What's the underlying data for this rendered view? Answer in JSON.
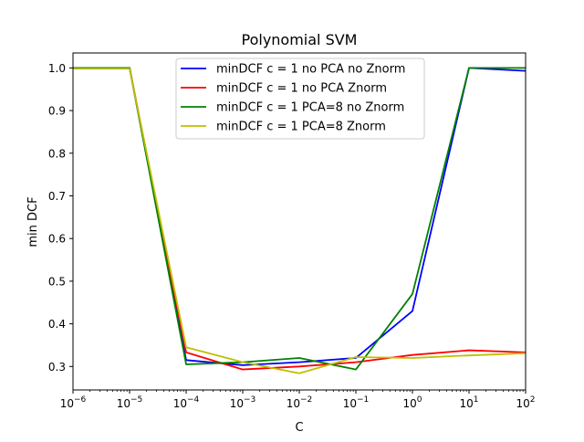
{
  "chart_data": {
    "type": "line",
    "title": "Polynomial SVM",
    "xlabel": "C",
    "ylabel": "min DCF",
    "x_scale": "log",
    "xlim": [
      1e-06,
      100
    ],
    "ylim": [
      0.245,
      1.035
    ],
    "x": [
      1e-06,
      1e-05,
      0.0001,
      0.001,
      0.01,
      0.1,
      1,
      10,
      100
    ],
    "x_ticks": [
      {
        "value": 1e-06,
        "base": "10",
        "exp": "−6"
      },
      {
        "value": 1e-05,
        "base": "10",
        "exp": "−5"
      },
      {
        "value": 0.0001,
        "base": "10",
        "exp": "−4"
      },
      {
        "value": 0.001,
        "base": "10",
        "exp": "−3"
      },
      {
        "value": 0.01,
        "base": "10",
        "exp": "−2"
      },
      {
        "value": 0.1,
        "base": "10",
        "exp": "−1"
      },
      {
        "value": 1,
        "base": "10",
        "exp": "0"
      },
      {
        "value": 10,
        "base": "10",
        "exp": "1"
      },
      {
        "value": 100,
        "base": "10",
        "exp": "2"
      }
    ],
    "y_ticks": [
      {
        "value": 0.3,
        "label": "0.3"
      },
      {
        "value": 0.4,
        "label": "0.4"
      },
      {
        "value": 0.5,
        "label": "0.5"
      },
      {
        "value": 0.6,
        "label": "0.6"
      },
      {
        "value": 0.7,
        "label": "0.7"
      },
      {
        "value": 0.8,
        "label": "0.8"
      },
      {
        "value": 0.9,
        "label": "0.9"
      },
      {
        "value": 1.0,
        "label": "1.0"
      }
    ],
    "grid": false,
    "legend_position": "top-center",
    "series": [
      {
        "name": "minDCF c = 1 no PCA no Znorm",
        "color": "#0000ff",
        "values": [
          1.0,
          1.0,
          0.315,
          0.303,
          0.31,
          0.32,
          0.43,
          1.0,
          0.993
        ]
      },
      {
        "name": "minDCF c = 1 no PCA Znorm",
        "color": "#ff0000",
        "values": [
          1.0,
          1.0,
          0.333,
          0.293,
          0.3,
          0.31,
          0.327,
          0.338,
          0.333
        ]
      },
      {
        "name": "minDCF c = 1 PCA=8 no Znorm",
        "color": "#008000",
        "values": [
          1.0,
          1.0,
          0.305,
          0.31,
          0.32,
          0.293,
          0.47,
          1.0,
          1.0
        ]
      },
      {
        "name": "minDCF c = 1 PCA=8 Znorm",
        "color": "#bfbf00",
        "values": [
          0.998,
          0.998,
          0.345,
          0.31,
          0.284,
          0.322,
          0.32,
          0.326,
          0.331
        ]
      }
    ]
  }
}
